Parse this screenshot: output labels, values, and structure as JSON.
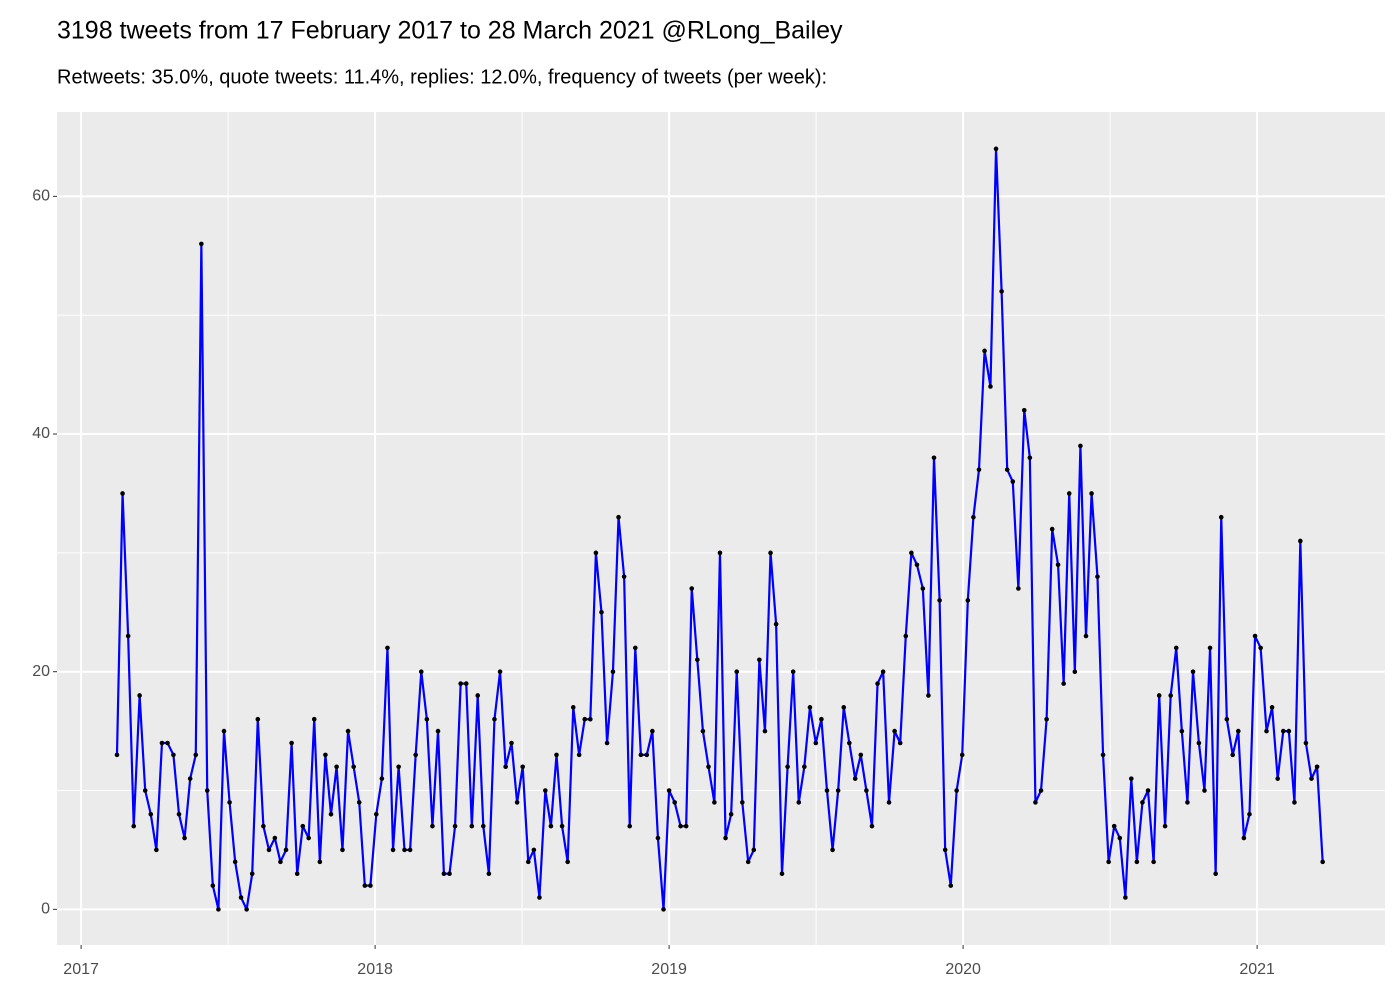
{
  "chart_data": {
    "type": "line",
    "title": "3198 tweets from 17 February 2017 to 28 March 2021 @RLong_Bailey",
    "subtitle": "Retweets: 35.0%, quote tweets: 11.4%, replies: 12.0%, frequency of tweets (per week):",
    "x": [
      2017.122,
      2017.141,
      2017.16,
      2017.179,
      2017.199,
      2017.218,
      2017.237,
      2017.256,
      2017.275,
      2017.294,
      2017.314,
      2017.333,
      2017.352,
      2017.371,
      2017.39,
      2017.409,
      2017.429,
      2017.448,
      2017.467,
      2017.486,
      2017.505,
      2017.524,
      2017.544,
      2017.563,
      2017.582,
      2017.601,
      2017.62,
      2017.639,
      2017.659,
      2017.678,
      2017.697,
      2017.716,
      2017.735,
      2017.754,
      2017.774,
      2017.793,
      2017.812,
      2017.831,
      2017.85,
      2017.869,
      2017.889,
      2017.908,
      2017.927,
      2017.946,
      2017.965,
      2017.984,
      2018.004,
      2018.023,
      2018.042,
      2018.061,
      2018.08,
      2018.1,
      2018.119,
      2018.138,
      2018.157,
      2018.176,
      2018.195,
      2018.214,
      2018.234,
      2018.253,
      2018.272,
      2018.291,
      2018.31,
      2018.329,
      2018.349,
      2018.368,
      2018.387,
      2018.406,
      2018.425,
      2018.444,
      2018.464,
      2018.483,
      2018.502,
      2018.521,
      2018.54,
      2018.559,
      2018.579,
      2018.598,
      2018.617,
      2018.636,
      2018.655,
      2018.674,
      2018.694,
      2018.713,
      2018.732,
      2018.751,
      2018.77,
      2018.789,
      2018.809,
      2018.828,
      2018.847,
      2018.866,
      2018.885,
      2018.904,
      2018.924,
      2018.943,
      2018.962,
      2018.981,
      2019.0,
      2019.019,
      2019.039,
      2019.058,
      2019.077,
      2019.096,
      2019.115,
      2019.134,
      2019.154,
      2019.173,
      2019.192,
      2019.211,
      2019.23,
      2019.249,
      2019.269,
      2019.288,
      2019.307,
      2019.326,
      2019.345,
      2019.364,
      2019.384,
      2019.403,
      2019.422,
      2019.441,
      2019.46,
      2019.479,
      2019.499,
      2019.518,
      2019.537,
      2019.556,
      2019.575,
      2019.594,
      2019.613,
      2019.633,
      2019.652,
      2019.671,
      2019.69,
      2019.709,
      2019.728,
      2019.748,
      2019.767,
      2019.786,
      2019.805,
      2019.824,
      2019.843,
      2019.863,
      2019.882,
      2019.901,
      2019.92,
      2019.939,
      2019.958,
      2019.978,
      2019.997,
      2020.016,
      2020.035,
      2020.054,
      2020.073,
      2020.093,
      2020.112,
      2020.131,
      2020.15,
      2020.169,
      2020.188,
      2020.208,
      2020.227,
      2020.246,
      2020.265,
      2020.284,
      2020.303,
      2020.323,
      2020.342,
      2020.361,
      2020.38,
      2020.399,
      2020.418,
      2020.437,
      2020.457,
      2020.476,
      2020.495,
      2020.514,
      2020.533,
      2020.552,
      2020.572,
      2020.591,
      2020.61,
      2020.629,
      2020.648,
      2020.667,
      2020.687,
      2020.706,
      2020.725,
      2020.744,
      2020.763,
      2020.782,
      2020.802,
      2020.821,
      2020.84,
      2020.859,
      2020.878,
      2020.897,
      2020.917,
      2020.936,
      2020.955,
      2020.974,
      2020.993,
      2021.012,
      2021.032,
      2021.051,
      2021.07,
      2021.089,
      2021.108,
      2021.127,
      2021.147,
      2021.166,
      2021.185,
      2021.204,
      2021.223
    ],
    "series": [
      {
        "color": "blue",
        "point_color": "black",
        "values": [
          13,
          35,
          23,
          7,
          18,
          10,
          8,
          5,
          14,
          14,
          13,
          8,
          6,
          11,
          13,
          56,
          10,
          2,
          0,
          15,
          9,
          4,
          1,
          0,
          3,
          16,
          7,
          5,
          6,
          4,
          5,
          14,
          3,
          7,
          6,
          16,
          4,
          13,
          8,
          12,
          5,
          15,
          12,
          9,
          2,
          2,
          8,
          11,
          22,
          5,
          12,
          5,
          5,
          13,
          20,
          16,
          7,
          15,
          3,
          3,
          7,
          19,
          19,
          7,
          18,
          7,
          3,
          16,
          20,
          12,
          14,
          9,
          12,
          4,
          5,
          1,
          10,
          7,
          13,
          7,
          4,
          17,
          13,
          16,
          16,
          30,
          25,
          14,
          20,
          33,
          28,
          7,
          22,
          13,
          13,
          15,
          6,
          0,
          10,
          9,
          7,
          7,
          27,
          21,
          15,
          12,
          9,
          30,
          6,
          8,
          20,
          9,
          4,
          5,
          21,
          15,
          30,
          24,
          3,
          12,
          20,
          9,
          12,
          17,
          14,
          16,
          10,
          5,
          10,
          17,
          14,
          11,
          13,
          10,
          7,
          19,
          20,
          9,
          15,
          14,
          23,
          30,
          29,
          27,
          18,
          38,
          26,
          5,
          2,
          10,
          13,
          26,
          33,
          37,
          47,
          44,
          64,
          52,
          37,
          36,
          27,
          42,
          38,
          9,
          10,
          16,
          32,
          29,
          19,
          35,
          20,
          39,
          23,
          35,
          28,
          13,
          4,
          7,
          6,
          1,
          11,
          4,
          9,
          10,
          4,
          18,
          7,
          18,
          22,
          15,
          9,
          20,
          14,
          10,
          22,
          3,
          33,
          16,
          13,
          15,
          6,
          8,
          23,
          22,
          15,
          17,
          11,
          15,
          15,
          9,
          31,
          14,
          11,
          12,
          4
        ]
      }
    ],
    "xlim": [
      2016.918,
      2021.435
    ],
    "xticks": [
      2017,
      2018,
      2019,
      2020,
      2021
    ],
    "ylim": [
      -3.0,
      67.1
    ],
    "yticks": [
      0,
      20,
      40,
      60
    ],
    "grid": true
  }
}
